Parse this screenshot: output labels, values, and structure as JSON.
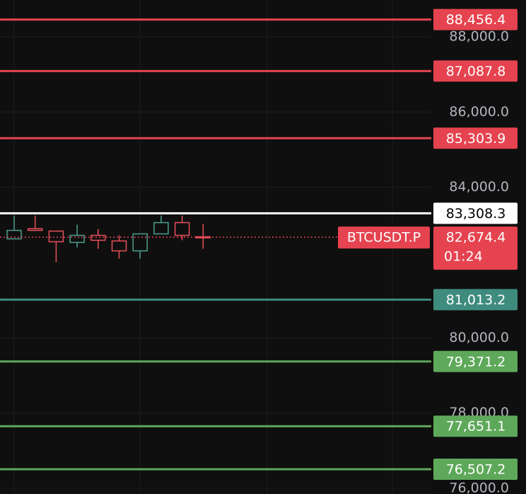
{
  "chart_data": {
    "type": "candlestick",
    "categories": [
      null,
      null,
      null,
      null,
      null,
      null,
      null,
      null,
      null,
      null
    ],
    "open": [
      82629,
      82900,
      82836,
      82535,
      82723,
      82573,
      82310,
      82761,
      83061,
      82685
    ],
    "high": [
      83249,
      83249,
      82836,
      83005,
      82892,
      82723,
      82761,
      83249,
      83249,
      83023
    ],
    "low": [
      82629,
      82854,
      82009,
      82404,
      82366,
      82103,
      82103,
      82761,
      82592,
      82366
    ],
    "close": [
      82854,
      82854,
      82554,
      82723,
      82592,
      82310,
      82761,
      83061,
      82723,
      82674.4
    ],
    "up_color": "#4fa08f",
    "down_color": "#e8505b",
    "ylim": [
      75850,
      88976
    ],
    "yticks": [
      {
        "value": 76000,
        "label": "76,000.0"
      },
      {
        "value": 78000,
        "label": "78,000.0"
      },
      {
        "value": 80000,
        "label": "80,000.0"
      },
      {
        "value": 84000,
        "label": "84,000.0"
      },
      {
        "value": 86000,
        "label": "86,000.0"
      },
      {
        "value": 88000,
        "label": "88,000.0"
      }
    ],
    "grid": true,
    "levels": {
      "values": [
        88456.4,
        87087.8,
        85303.9,
        83308.3,
        81013.2,
        79371.2,
        77651.1,
        76507.2
      ],
      "value_labels": [
        "88,456.4",
        "87,087.8",
        "85,303.9",
        "83,308.3",
        "81,013.2",
        "79,371.2",
        "77,651.1",
        "76,507.2"
      ],
      "colors": [
        "#e5434f",
        "#e5434f",
        "#e5434f",
        "#ffffff",
        "#3f8c7e",
        "#5ea85a",
        "#5ea85a",
        "#5ea85a"
      ]
    },
    "current": {
      "symbol": "BTCUSDT.P",
      "value": 82674.4,
      "value_label": "82,674.4",
      "countdown": "01:24",
      "color": "#e5434f"
    }
  }
}
